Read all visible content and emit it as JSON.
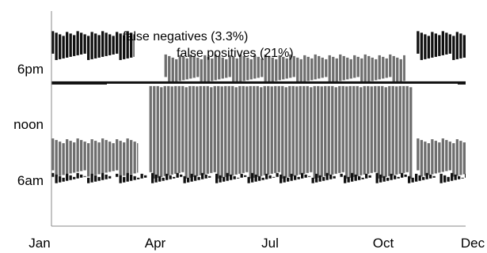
{
  "chart_data": {
    "type": "heatmap",
    "title": "",
    "xlabel": "",
    "ylabel": "",
    "x_axis": {
      "unit": "month",
      "range": [
        "Jan",
        "Dec"
      ],
      "tick_labels": [
        "Jan",
        "Apr",
        "Jul",
        "Oct",
        "Dec"
      ],
      "tick_months": [
        1,
        4,
        7,
        10,
        12
      ]
    },
    "y_axis": {
      "unit": "hour_of_day",
      "range": [
        0,
        24
      ],
      "tick_labels": [
        "6am",
        "noon",
        "6pm"
      ],
      "tick_hours": [
        6,
        12,
        18
      ]
    },
    "grid": false,
    "legend": "none",
    "colors": {
      "false_positives": "#6e6e6e",
      "false_negatives": "#111111",
      "threshold_line": "#111111",
      "background": "#ffffff",
      "axis": "#888888"
    },
    "annotations": [
      {
        "key": "false_negatives",
        "text": "false negatives (3.3%)",
        "near_hour": 20.6,
        "near_month": 4.0
      },
      {
        "key": "false_positives",
        "text": "false positives (21%)",
        "near_hour": 19.7,
        "near_month": 5.2
      }
    ],
    "series": [
      {
        "key": "false_negatives",
        "rate_percent": 3.3
      },
      {
        "key": "false_positives",
        "rate_percent": 21
      }
    ],
    "regions": [
      {
        "series": "false_negatives",
        "month_from": 1.0,
        "month_to": 3.2,
        "hour_from": 19.5,
        "hour_to": 22.0
      },
      {
        "series": "false_negatives",
        "month_from": 10.7,
        "month_to": 12.0,
        "hour_from": 19.5,
        "hour_to": 22.0
      },
      {
        "series": "false_positives",
        "month_from": 4.0,
        "month_to": 10.4,
        "hour_from": 17.0,
        "hour_to": 19.5
      },
      {
        "series": "false_positives",
        "month_from": 3.6,
        "month_to": 10.6,
        "hour_from": 6.8,
        "hour_to": 16.5
      },
      {
        "series": "false_positives",
        "month_from": 1.0,
        "month_to": 3.3,
        "hour_from": 7.0,
        "hour_to": 10.5
      },
      {
        "series": "false_positives",
        "month_from": 10.7,
        "month_to": 12.0,
        "hour_from": 7.0,
        "hour_to": 10.5
      },
      {
        "series": "false_negatives",
        "month_from": 1.0,
        "month_to": 12.0,
        "hour_from": 6.3,
        "hour_to": 6.8
      }
    ],
    "threshold_line": {
      "hour": 16.7,
      "month_from": 1.0,
      "month_to": 12.0
    }
  }
}
